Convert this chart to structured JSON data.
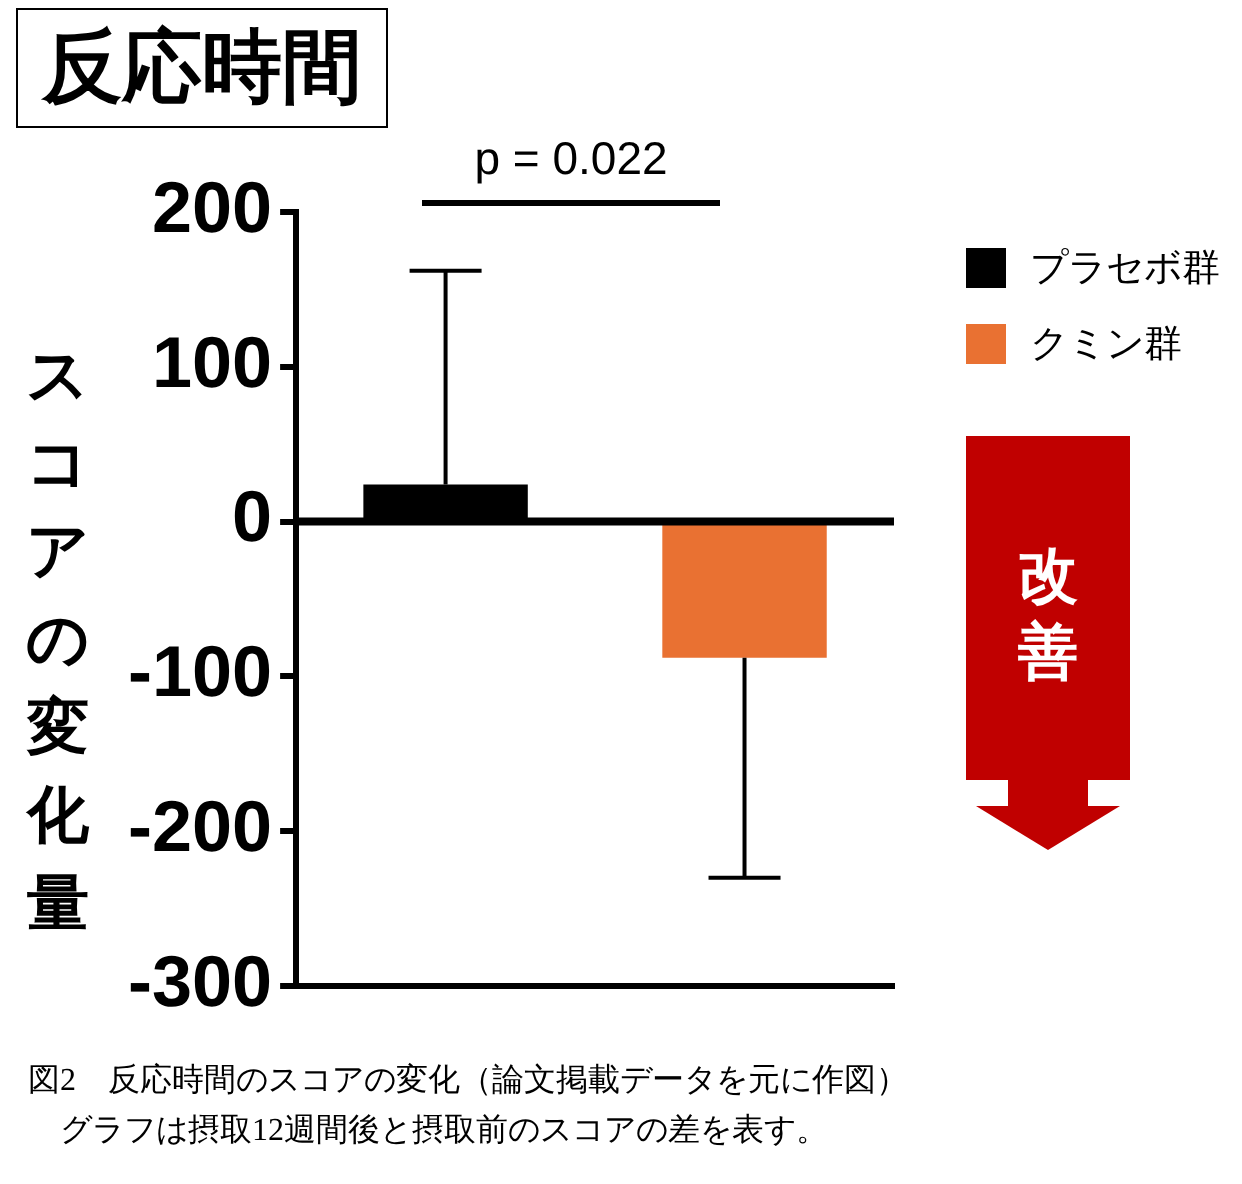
{
  "chart_data": {
    "type": "bar",
    "title": "反応時間",
    "ylabel": "スコアの変化量",
    "categories": [
      null,
      null
    ],
    "series": [
      {
        "name": "プラセボ群",
        "color": "#000000",
        "values": [
          24,
          null
        ],
        "errors": [
          [
            24,
            162
          ],
          null
        ]
      },
      {
        "name": "クミン群",
        "color": "#e97132",
        "values": [
          null,
          -88
        ],
        "errors": [
          null,
          [
            -230,
            -88
          ]
        ]
      }
    ],
    "ylim": [
      -300,
      200
    ],
    "yticks": [
      -300,
      -200,
      -100,
      0,
      100,
      200
    ],
    "grid": false,
    "legend": "top right",
    "ref_lines": [
      {
        "axis": "y",
        "value": 0
      }
    ],
    "annotations": [
      "p = 0.022",
      "改善",
      "図2　反応時間のスコアの変化（論文掲載データを元に作図）",
      "グラフは摂取12週間後と摂取前のスコアの差を表す。"
    ]
  }
}
